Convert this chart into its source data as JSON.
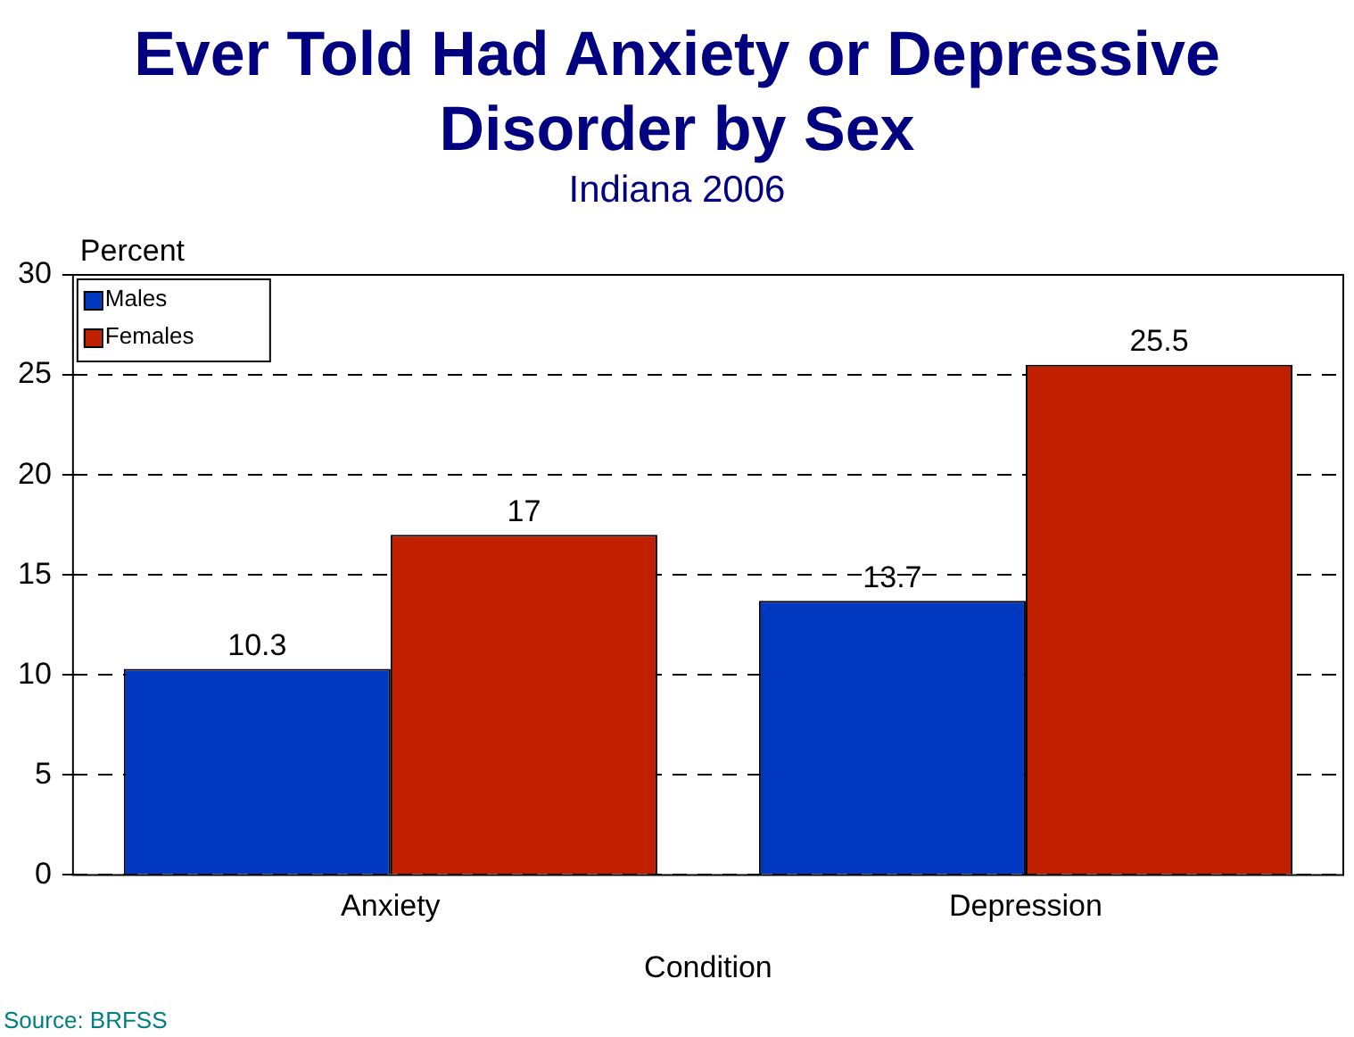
{
  "chart_data": {
    "type": "bar",
    "title": "Ever Told Had Anxiety or Depressive Disorder by Sex",
    "subtitle": "Indiana 2006",
    "xlabel": "Condition",
    "ylabel": "Percent",
    "categories": [
      "Anxiety",
      "Depression"
    ],
    "series": [
      {
        "name": "Males",
        "color": "#0038c0",
        "values": [
          10.3,
          13.7
        ]
      },
      {
        "name": "Females",
        "color": "#c02000",
        "values": [
          17,
          25.5
        ]
      }
    ],
    "ylim": [
      0,
      30
    ],
    "yticks": [
      0,
      5,
      10,
      15,
      20,
      25,
      30
    ],
    "grid": "y",
    "legend": "top left",
    "data_labels": true,
    "annotations": [
      "Source:  BRFSS"
    ]
  }
}
